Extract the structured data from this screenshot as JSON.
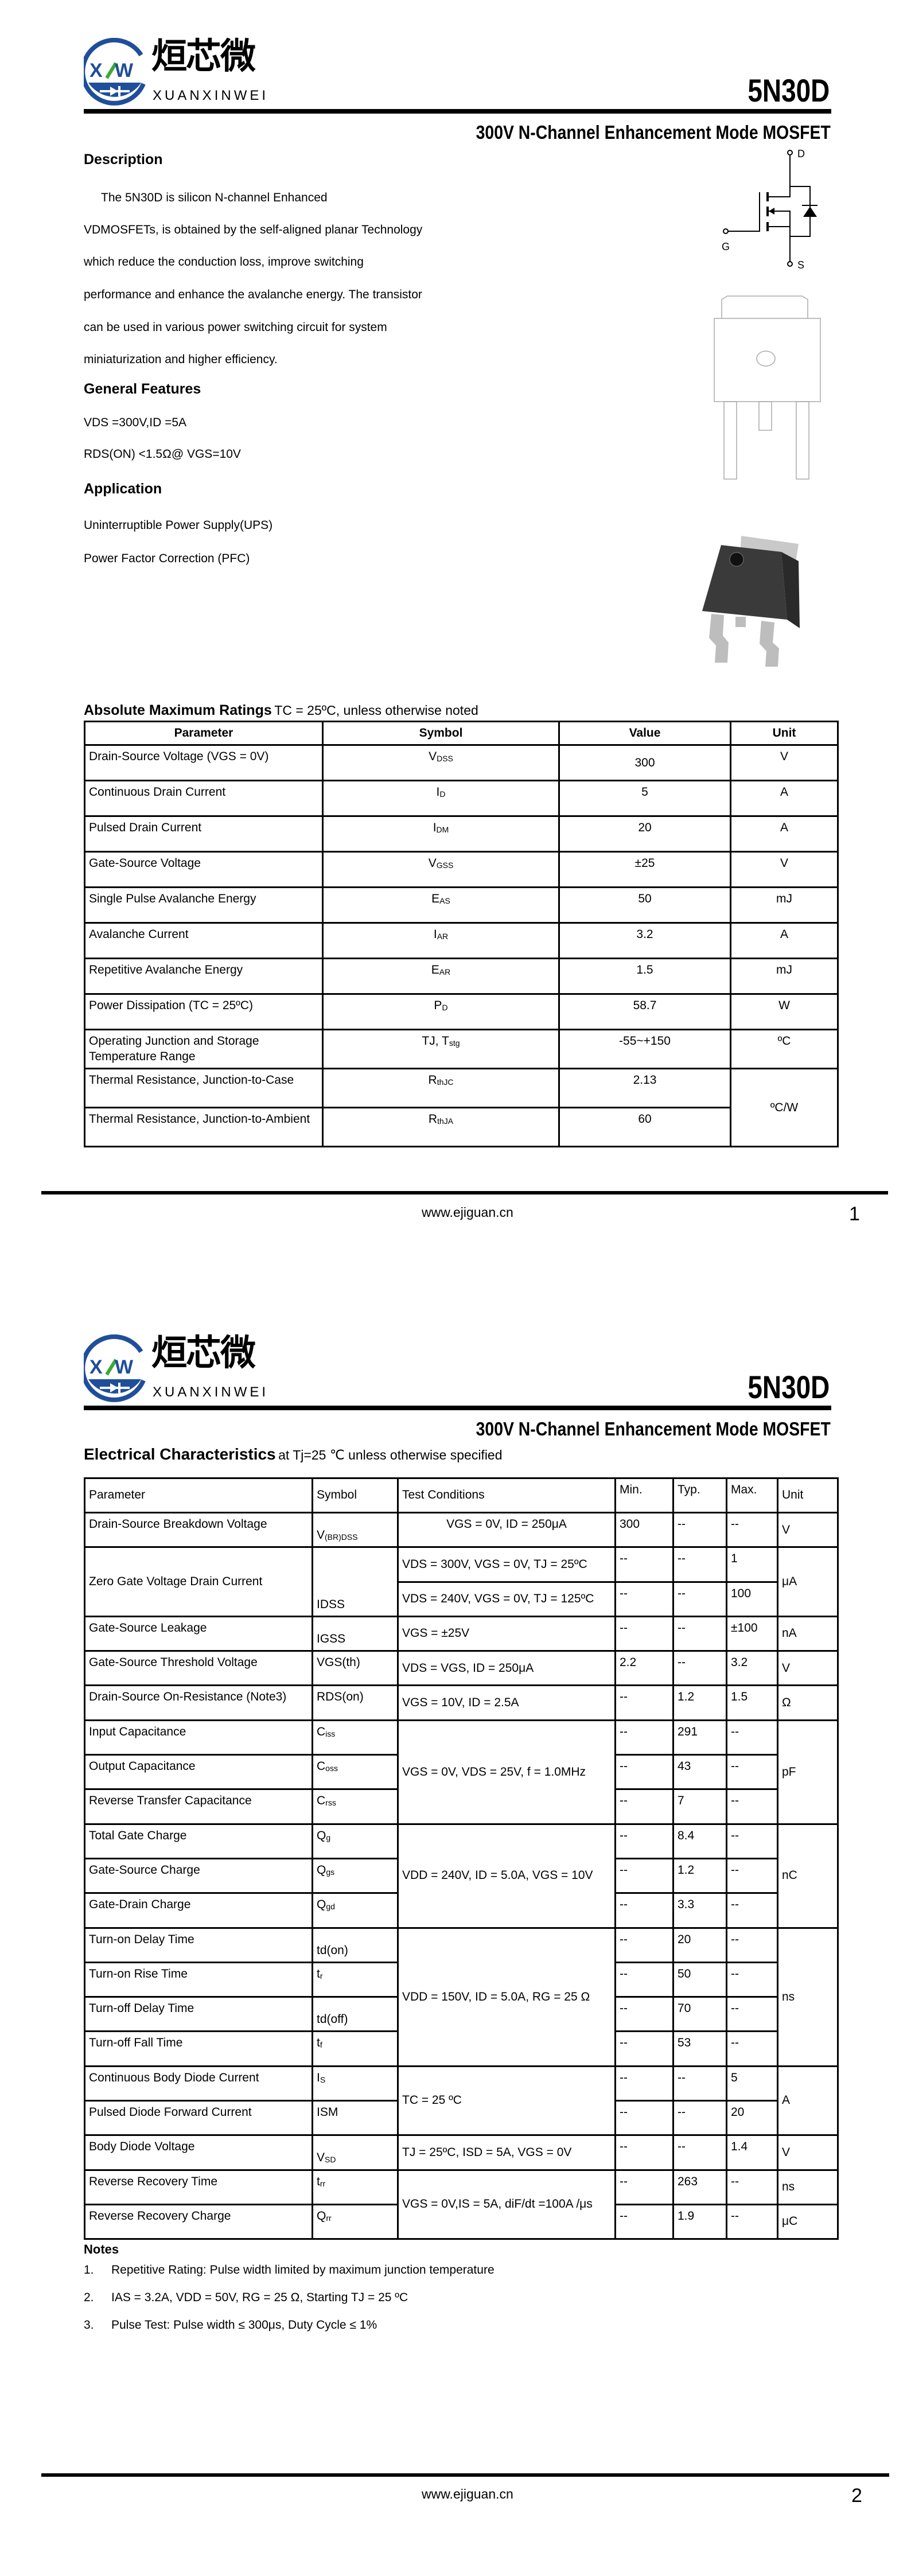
{
  "brand": {
    "cn": "烜芯微",
    "en": "XUANXINWEI",
    "logo_letters": "XW",
    "blue": "#1f4e9a",
    "green": "#3aaa35"
  },
  "part_number": "5N30D",
  "subtitle": "300V N-Channel Enhancement Mode MOSFET",
  "description": {
    "heading": "Description",
    "lines": [
      "The 5N30D is silicon N-channel Enhanced",
      "VDMOSFETs, is obtained by the self-aligned planar Technology",
      "which reduce the conduction loss, improve switching",
      "performance and enhance the avalanche energy. The transistor",
      "can be used in various power switching circuit for system",
      "miniaturization and higher efficiency."
    ]
  },
  "features": {
    "heading": "General Features",
    "lines": [
      "VDS =300V,ID =5A",
      "RDS(ON) <1.5Ω@ VGS=10V"
    ]
  },
  "application": {
    "heading": "Application",
    "lines": [
      "Uninterruptible Power Supply(UPS)",
      "Power Factor Correction (PFC)"
    ]
  },
  "schematic": {
    "drain": "D",
    "gate": "G",
    "source": "S"
  },
  "abs_max": {
    "title": "Absolute Maximum Ratings",
    "condition": "TC = 25ºC, unless otherwise noted",
    "headers": [
      "Parameter",
      "Symbol",
      "Value",
      "Unit"
    ],
    "rows": [
      {
        "param": "Drain-Source Voltage (VGS = 0V)",
        "sym": [
          "V",
          "DSS"
        ],
        "value": "300",
        "unit": "V"
      },
      {
        "param": "Continuous Drain Current",
        "sym": [
          "I",
          "D"
        ],
        "value": "5",
        "unit": "A"
      },
      {
        "param": "Pulsed Drain Current",
        "sym": [
          "I",
          "DM"
        ],
        "value": "20",
        "unit": "A"
      },
      {
        "param": "Gate-Source Voltage",
        "sym": [
          "V",
          "GSS"
        ],
        "value": "±25",
        "unit": "V"
      },
      {
        "param": "Single Pulse Avalanche Energy",
        "sym": [
          "E",
          "AS"
        ],
        "value": "50",
        "unit": "mJ"
      },
      {
        "param": "Avalanche Current",
        "sym": [
          "I",
          "AR"
        ],
        "value": "3.2",
        "unit": "A"
      },
      {
        "param": "Repetitive Avalanche Energy",
        "sym": [
          "E",
          "AR"
        ],
        "value": "1.5",
        "unit": "mJ"
      },
      {
        "param": "Power Dissipation (TC = 25ºC)",
        "sym": [
          "P",
          "D"
        ],
        "value": "58.7",
        "unit": "W"
      },
      {
        "param": "Operating Junction and Storage Temperature Range",
        "sym": [
          "TJ, T",
          "stg"
        ],
        "value": "-55~+150",
        "unit": "ºC"
      },
      {
        "param": "Thermal Resistance, Junction-to-Case",
        "sym": [
          "R",
          "thJC"
        ],
        "value": "2.13",
        "unit": "ºC/W"
      },
      {
        "param": "Thermal Resistance, Junction-to-Ambient",
        "sym": [
          "R",
          "thJA"
        ],
        "value": "60",
        "unit": null
      }
    ]
  },
  "elec": {
    "title": "Electrical Characteristics",
    "condition": "at Tj=25 ℃ unless otherwise specified",
    "headers": [
      "Parameter",
      "Symbol",
      "Test Conditions",
      "Min.",
      "Typ.",
      "Max.",
      "Unit"
    ],
    "rows": [
      {
        "param": "Drain-Source Breakdown Voltage",
        "sym": [
          "V",
          "(BR)DSS"
        ],
        "cond": "VGS = 0V, ID = 250μA",
        "min": "300",
        "typ": "--",
        "max": "--",
        "unit": "V"
      },
      {
        "param": "Zero Gate Voltage Drain Current",
        "sym": [
          "IDSS",
          ""
        ],
        "cond": "VDS = 300V, VGS = 0V, TJ = 25ºC",
        "min": "--",
        "typ": "--",
        "max": "1",
        "unit": "μA"
      },
      {
        "param": null,
        "sym": null,
        "cond": "VDS = 240V, VGS = 0V, TJ = 125ºC",
        "min": "--",
        "typ": "--",
        "max": "100",
        "unit": null
      },
      {
        "param": "Gate-Source Leakage",
        "sym": [
          "IGSS",
          ""
        ],
        "cond": "VGS = ±25V",
        "min": "--",
        "typ": "--",
        "max": "±100",
        "unit": "nA"
      },
      {
        "param": "Gate-Source Threshold Voltage",
        "sym": [
          "VGS(th)",
          ""
        ],
        "cond": "VDS = VGS, ID = 250μA",
        "min": "2.2",
        "typ": "--",
        "max": "3.2",
        "unit": "V"
      },
      {
        "param": "Drain-Source On-Resistance (Note3)",
        "sym": [
          "RDS(on)",
          ""
        ],
        "cond": "VGS = 10V, ID = 2.5A",
        "min": "--",
        "typ": "1.2",
        "max": "1.5",
        "unit": "Ω"
      },
      {
        "param": "Input Capacitance",
        "sym": [
          "C",
          "iss"
        ],
        "cond": "VGS = 0V, VDS = 25V, f = 1.0MHz",
        "min": "--",
        "typ": "291",
        "max": "--",
        "unit": "pF"
      },
      {
        "param": "Output Capacitance",
        "sym": [
          "C",
          "oss"
        ],
        "cond": null,
        "min": "--",
        "typ": "43",
        "max": "--",
        "unit": null
      },
      {
        "param": "Reverse Transfer Capacitance",
        "sym": [
          "C",
          "rss"
        ],
        "cond": null,
        "min": "--",
        "typ": "7",
        "max": "--",
        "unit": null
      },
      {
        "param": "Total Gate Charge",
        "sym": [
          "Q",
          "g"
        ],
        "cond": "VDD = 240V, ID = 5.0A, VGS = 10V",
        "min": "--",
        "typ": "8.4",
        "max": "--",
        "unit": "nC"
      },
      {
        "param": "Gate-Source Charge",
        "sym": [
          "Q",
          "gs"
        ],
        "cond": null,
        "min": "--",
        "typ": "1.2",
        "max": "--",
        "unit": null
      },
      {
        "param": "Gate-Drain Charge",
        "sym": [
          "Q",
          "gd"
        ],
        "cond": null,
        "min": "--",
        "typ": "3.3",
        "max": "--",
        "unit": null
      },
      {
        "param": "Turn-on Delay Time",
        "sym": [
          "td(on)",
          ""
        ],
        "cond": "VDD = 150V, ID = 5.0A, RG = 25 Ω",
        "min": "--",
        "typ": "20",
        "max": "--",
        "unit": "ns"
      },
      {
        "param": "Turn-on Rise Time",
        "sym": [
          "t",
          "r"
        ],
        "cond": null,
        "min": "--",
        "typ": "50",
        "max": "--",
        "unit": null
      },
      {
        "param": "Turn-off Delay Time",
        "sym": [
          "td(off)",
          ""
        ],
        "cond": null,
        "min": "--",
        "typ": "70",
        "max": "--",
        "unit": null
      },
      {
        "param": "Turn-off Fall Time",
        "sym": [
          "t",
          "f"
        ],
        "cond": null,
        "min": "--",
        "typ": "53",
        "max": "--",
        "unit": null
      },
      {
        "param": "Continuous Body Diode Current",
        "sym": [
          "I",
          "S"
        ],
        "cond": "TC = 25 ºC",
        "min": "--",
        "typ": "--",
        "max": "5",
        "unit": "A"
      },
      {
        "param": "Pulsed Diode Forward Current",
        "sym": [
          "ISM",
          ""
        ],
        "cond": null,
        "min": "--",
        "typ": "--",
        "max": "20",
        "unit": null
      },
      {
        "param": "Body Diode Voltage",
        "sym": [
          "V",
          "SD"
        ],
        "cond": "TJ = 25ºC, ISD = 5A, VGS = 0V",
        "min": "--",
        "typ": "--",
        "max": "1.4",
        "unit": "V"
      },
      {
        "param": "Reverse Recovery Time",
        "sym": [
          "t",
          "rr"
        ],
        "cond": "VGS = 0V,IS = 5A, diF/dt =100A /μs",
        "min": "--",
        "typ": "263",
        "max": "--",
        "unit": "ns"
      },
      {
        "param": "Reverse Recovery Charge",
        "sym": [
          "Q",
          "rr"
        ],
        "cond": null,
        "min": "--",
        "typ": "1.9",
        "max": "--",
        "unit": "μC"
      }
    ]
  },
  "notes": {
    "heading": "Notes",
    "items": [
      {
        "num": "1.",
        "text": "Repetitive Rating: Pulse width limited by maximum junction temperature"
      },
      {
        "num": "2.",
        "text": "IAS = 3.2A, VDD = 50V, RG = 25 Ω, Starting TJ = 25 ºC"
      },
      {
        "num": "3.",
        "text": "Pulse Test: Pulse width ≤ 300μs, Duty Cycle ≤ 1%"
      }
    ]
  },
  "footer": {
    "website": "www.ejiguan.cn",
    "pages": [
      "1",
      "2"
    ]
  }
}
